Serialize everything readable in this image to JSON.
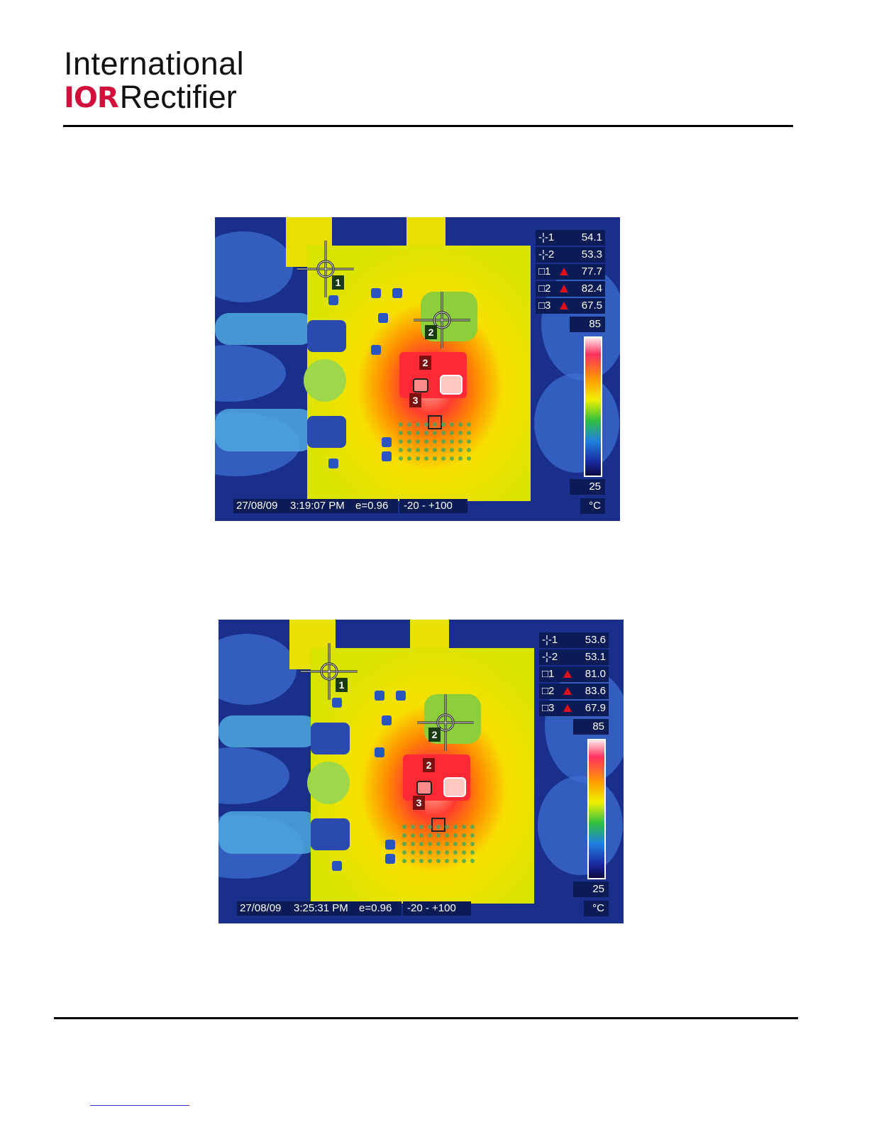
{
  "header": {
    "logo_line1": "International",
    "logo_mark": "IOR",
    "logo_word": "Rectifier"
  },
  "images": [
    {
      "measurements": [
        {
          "label": "-¦-1",
          "value": "54.1",
          "alarm": false
        },
        {
          "label": "-¦-2",
          "value": "53.3",
          "alarm": false
        },
        {
          "label": "□1",
          "value": "77.7",
          "alarm": true
        },
        {
          "label": "□2",
          "value": "82.4",
          "alarm": true
        },
        {
          "label": "□3",
          "value": "67.5",
          "alarm": true
        }
      ],
      "scale_max": "85",
      "scale_min": "25",
      "unit": "°C",
      "date": "27/08/09",
      "time": "3:19:07 PM",
      "emissivity": "e=0.96",
      "range": "-20 -  +100",
      "markers": [
        "1",
        "2",
        "2",
        "3"
      ]
    },
    {
      "measurements": [
        {
          "label": "-¦-1",
          "value": "53.6",
          "alarm": false
        },
        {
          "label": "-¦-2",
          "value": "53.1",
          "alarm": false
        },
        {
          "label": "□1",
          "value": "81.0",
          "alarm": true
        },
        {
          "label": "□2",
          "value": "83.6",
          "alarm": true
        },
        {
          "label": "□3",
          "value": "67.9",
          "alarm": true
        }
      ],
      "scale_max": "85",
      "scale_min": "25",
      "unit": "°C",
      "date": "27/08/09",
      "time": "3:25:31 PM",
      "emissivity": "e=0.96",
      "range": "-20 -  +100",
      "markers": [
        "1",
        "2",
        "2",
        "3"
      ]
    }
  ],
  "colors": {
    "brand_red": "#d0103a",
    "overlay_navy": "#0b1b55"
  }
}
